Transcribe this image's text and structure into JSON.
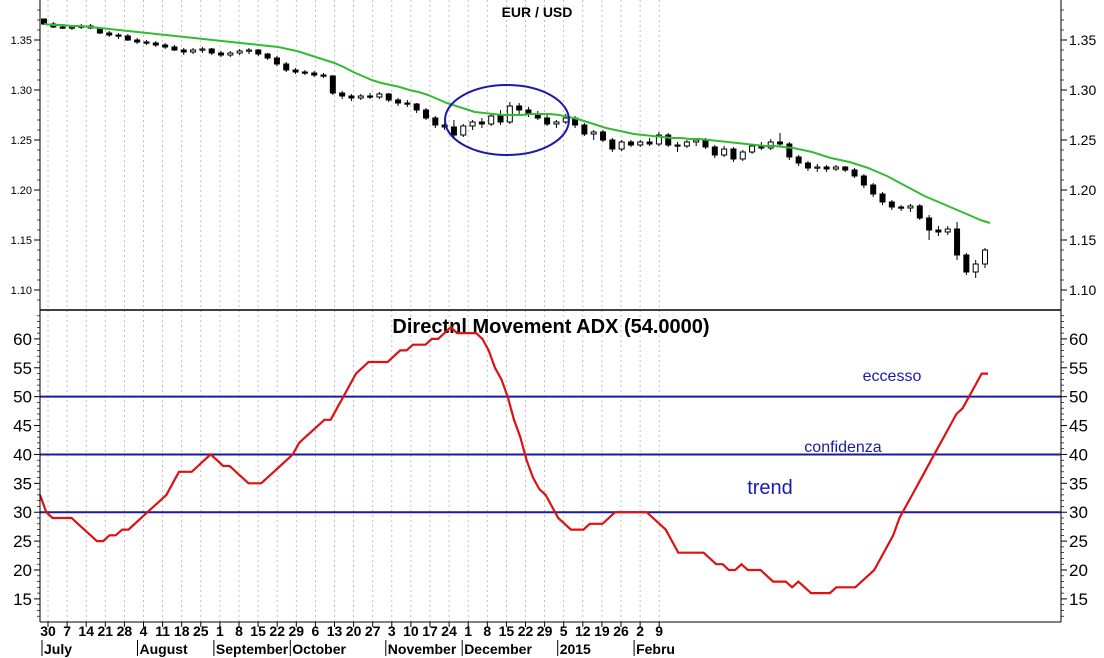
{
  "chart_data": [
    {
      "type": "candlestick",
      "title": "EUR / USD",
      "ylim": [
        1.08,
        1.39
      ],
      "y_ticks": [
        "1.10",
        "1.15",
        "1.20",
        "1.25",
        "1.30",
        "1.35"
      ],
      "colors": {
        "ma": "#33bb33",
        "candle": "#000000",
        "circle": "#1a1aaa"
      },
      "candles": [
        [
          1.371,
          1.371,
          1.365,
          1.366
        ],
        [
          1.366,
          1.368,
          1.362,
          1.363
        ],
        [
          1.363,
          1.365,
          1.361,
          1.362
        ],
        [
          1.362,
          1.364,
          1.36,
          1.363
        ],
        [
          1.363,
          1.366,
          1.361,
          1.364
        ],
        [
          1.364,
          1.366,
          1.361,
          1.362
        ],
        [
          1.362,
          1.363,
          1.356,
          1.357
        ],
        [
          1.357,
          1.359,
          1.353,
          1.355
        ],
        [
          1.355,
          1.357,
          1.351,
          1.354
        ],
        [
          1.354,
          1.356,
          1.349,
          1.35
        ],
        [
          1.35,
          1.352,
          1.346,
          1.348
        ],
        [
          1.348,
          1.35,
          1.345,
          1.347
        ],
        [
          1.347,
          1.349,
          1.343,
          1.345
        ],
        [
          1.345,
          1.347,
          1.341,
          1.343
        ],
        [
          1.343,
          1.345,
          1.339,
          1.34
        ],
        [
          1.34,
          1.342,
          1.335,
          1.338
        ],
        [
          1.338,
          1.342,
          1.336,
          1.34
        ],
        [
          1.34,
          1.343,
          1.337,
          1.341
        ],
        [
          1.341,
          1.342,
          1.335,
          1.337
        ],
        [
          1.337,
          1.339,
          1.333,
          1.335
        ],
        [
          1.335,
          1.339,
          1.333,
          1.337
        ],
        [
          1.337,
          1.341,
          1.335,
          1.339
        ],
        [
          1.339,
          1.342,
          1.336,
          1.34
        ],
        [
          1.34,
          1.341,
          1.334,
          1.336
        ],
        [
          1.336,
          1.337,
          1.33,
          1.332
        ],
        [
          1.332,
          1.334,
          1.324,
          1.326
        ],
        [
          1.326,
          1.328,
          1.318,
          1.32
        ],
        [
          1.32,
          1.322,
          1.316,
          1.318
        ],
        [
          1.318,
          1.32,
          1.315,
          1.317
        ],
        [
          1.317,
          1.319,
          1.313,
          1.315
        ],
        [
          1.315,
          1.317,
          1.312,
          1.314
        ],
        [
          1.314,
          1.315,
          1.295,
          1.297
        ],
        [
          1.297,
          1.299,
          1.291,
          1.294
        ],
        [
          1.294,
          1.296,
          1.289,
          1.292
        ],
        [
          1.292,
          1.296,
          1.29,
          1.294
        ],
        [
          1.294,
          1.297,
          1.291,
          1.293
        ],
        [
          1.293,
          1.298,
          1.291,
          1.296
        ],
        [
          1.296,
          1.297,
          1.288,
          1.29
        ],
        [
          1.29,
          1.292,
          1.284,
          1.287
        ],
        [
          1.287,
          1.29,
          1.283,
          1.286
        ],
        [
          1.286,
          1.287,
          1.277,
          1.28
        ],
        [
          1.28,
          1.282,
          1.27,
          1.272
        ],
        [
          1.272,
          1.274,
          1.262,
          1.265
        ],
        [
          1.265,
          1.268,
          1.26,
          1.263
        ],
        [
          1.263,
          1.27,
          1.252,
          1.255
        ],
        [
          1.255,
          1.266,
          1.253,
          1.264
        ],
        [
          1.264,
          1.27,
          1.26,
          1.268
        ],
        [
          1.268,
          1.272,
          1.262,
          1.266
        ],
        [
          1.266,
          1.276,
          1.264,
          1.274
        ],
        [
          1.274,
          1.28,
          1.265,
          1.268
        ],
        [
          1.268,
          1.288,
          1.266,
          1.284
        ],
        [
          1.284,
          1.287,
          1.276,
          1.28
        ],
        [
          1.28,
          1.283,
          1.273,
          1.276
        ],
        [
          1.276,
          1.279,
          1.27,
          1.272
        ],
        [
          1.272,
          1.275,
          1.264,
          1.266
        ],
        [
          1.266,
          1.27,
          1.262,
          1.268
        ],
        [
          1.268,
          1.276,
          1.266,
          1.272
        ],
        [
          1.272,
          1.274,
          1.262,
          1.265
        ],
        [
          1.265,
          1.267,
          1.254,
          1.256
        ],
        [
          1.256,
          1.26,
          1.25,
          1.258
        ],
        [
          1.258,
          1.26,
          1.248,
          1.25
        ],
        [
          1.25,
          1.252,
          1.238,
          1.241
        ],
        [
          1.241,
          1.25,
          1.239,
          1.248
        ],
        [
          1.248,
          1.25,
          1.243,
          1.245
        ],
        [
          1.245,
          1.25,
          1.243,
          1.248
        ],
        [
          1.248,
          1.252,
          1.244,
          1.246
        ],
        [
          1.246,
          1.258,
          1.244,
          1.255
        ],
        [
          1.255,
          1.257,
          1.243,
          1.245
        ],
        [
          1.245,
          1.248,
          1.238,
          1.244
        ],
        [
          1.244,
          1.25,
          1.242,
          1.248
        ],
        [
          1.248,
          1.252,
          1.244,
          1.25
        ],
        [
          1.25,
          1.252,
          1.241,
          1.243
        ],
        [
          1.243,
          1.245,
          1.232,
          1.235
        ],
        [
          1.235,
          1.244,
          1.233,
          1.241
        ],
        [
          1.241,
          1.243,
          1.228,
          1.231
        ],
        [
          1.231,
          1.24,
          1.229,
          1.238
        ],
        [
          1.238,
          1.246,
          1.236,
          1.244
        ],
        [
          1.244,
          1.248,
          1.24,
          1.242
        ],
        [
          1.242,
          1.251,
          1.24,
          1.248
        ],
        [
          1.248,
          1.257,
          1.244,
          1.246
        ],
        [
          1.246,
          1.248,
          1.23,
          1.233
        ],
        [
          1.233,
          1.235,
          1.224,
          1.227
        ],
        [
          1.227,
          1.229,
          1.219,
          1.222
        ],
        [
          1.222,
          1.226,
          1.218,
          1.223
        ],
        [
          1.223,
          1.225,
          1.218,
          1.221
        ],
        [
          1.221,
          1.225,
          1.219,
          1.223
        ],
        [
          1.223,
          1.224,
          1.218,
          1.22
        ],
        [
          1.22,
          1.222,
          1.212,
          1.214
        ],
        [
          1.214,
          1.216,
          1.202,
          1.205
        ],
        [
          1.205,
          1.207,
          1.193,
          1.196
        ],
        [
          1.196,
          1.198,
          1.185,
          1.188
        ],
        [
          1.188,
          1.19,
          1.18,
          1.183
        ],
        [
          1.183,
          1.185,
          1.179,
          1.182
        ],
        [
          1.182,
          1.186,
          1.178,
          1.184
        ],
        [
          1.184,
          1.186,
          1.17,
          1.172
        ],
        [
          1.172,
          1.175,
          1.15,
          1.16
        ],
        [
          1.16,
          1.164,
          1.154,
          1.158
        ],
        [
          1.158,
          1.164,
          1.155,
          1.161
        ],
        [
          1.161,
          1.168,
          1.13,
          1.135
        ],
        [
          1.135,
          1.137,
          1.115,
          1.118
        ],
        [
          1.118,
          1.13,
          1.112,
          1.126
        ],
        [
          1.126,
          1.142,
          1.122,
          1.14
        ]
      ],
      "ma": [
        1.366,
        1.365,
        1.365,
        1.364,
        1.364,
        1.363,
        1.362,
        1.361,
        1.36,
        1.359,
        1.358,
        1.357,
        1.356,
        1.355,
        1.354,
        1.353,
        1.352,
        1.351,
        1.35,
        1.349,
        1.348,
        1.347,
        1.346,
        1.345,
        1.344,
        1.343,
        1.341,
        1.339,
        1.336,
        1.333,
        1.33,
        1.327,
        1.323,
        1.318,
        1.314,
        1.31,
        1.307,
        1.305,
        1.303,
        1.3,
        1.298,
        1.295,
        1.291,
        1.287,
        1.284,
        1.281,
        1.278,
        1.277,
        1.276,
        1.275,
        1.275,
        1.275,
        1.276,
        1.276,
        1.276,
        1.275,
        1.273,
        1.271,
        1.268,
        1.265,
        1.262,
        1.26,
        1.258,
        1.256,
        1.255,
        1.254,
        1.253,
        1.252,
        1.252,
        1.251,
        1.251,
        1.25,
        1.249,
        1.248,
        1.247,
        1.246,
        1.245,
        1.244,
        1.244,
        1.243,
        1.242,
        1.24,
        1.238,
        1.235,
        1.232,
        1.23,
        1.228,
        1.225,
        1.222,
        1.218,
        1.214,
        1.209,
        1.204,
        1.199,
        1.194,
        1.19,
        1.186,
        1.182,
        1.178,
        1.174,
        1.17,
        1.167
      ]
    },
    {
      "type": "line",
      "title": "Directnl Movement ADX (54.0000)",
      "ylim": [
        11,
        65
      ],
      "y_ticks": [
        "15",
        "20",
        "25",
        "30",
        "35",
        "40",
        "45",
        "50",
        "55",
        "60"
      ],
      "colors": {
        "adx": "#dd1111",
        "levels": "#1a1aaa"
      },
      "series": [
        {
          "values": [
            33,
            30,
            29,
            29,
            29,
            29,
            28,
            27,
            26,
            25,
            25,
            26,
            26,
            27,
            27,
            28,
            29,
            30,
            31,
            32,
            33,
            35,
            37,
            37,
            37,
            38,
            39,
            40,
            39,
            38,
            38,
            37,
            36,
            35,
            35,
            35,
            36,
            37,
            38,
            39,
            40,
            42,
            43,
            44,
            45,
            46,
            46,
            48,
            50,
            52,
            54,
            55,
            56,
            56,
            56,
            56,
            57,
            58,
            58,
            59,
            59,
            59,
            60,
            60,
            61,
            62,
            61,
            61,
            61,
            61,
            60,
            58,
            55,
            53,
            50,
            46,
            43,
            39,
            36,
            34,
            33,
            31,
            29,
            28,
            27,
            27,
            27,
            28,
            28,
            28,
            29,
            30,
            30,
            30,
            30,
            30,
            30,
            29,
            28,
            27,
            25,
            23,
            23,
            23,
            23,
            23,
            22,
            21,
            21,
            20,
            20,
            21,
            20,
            20,
            20,
            19,
            18,
            18,
            18,
            17,
            18,
            17,
            16,
            16,
            16,
            16,
            17,
            17,
            17,
            17,
            18,
            19,
            20,
            22,
            24,
            26,
            29,
            31,
            33,
            35,
            37,
            39,
            41,
            43,
            45,
            47,
            48,
            50,
            52,
            54,
            54
          ]
        }
      ],
      "levels": [
        {
          "value": 30,
          "label": "trend"
        },
        {
          "value": 40,
          "label": "confidenza"
        },
        {
          "value": 50,
          "label": "eccesso"
        }
      ]
    }
  ],
  "x_axis": {
    "day_labels": [
      "30",
      "7",
      "14",
      "21",
      "28",
      "4",
      "11",
      "18",
      "25",
      "1",
      "8",
      "15",
      "22",
      "29",
      "6",
      "13",
      "20",
      "27",
      "3",
      "10",
      "17",
      "24",
      "1",
      "8",
      "15",
      "22",
      "29",
      "5",
      "12",
      "19",
      "26",
      "2",
      "9"
    ],
    "month_labels": [
      "July",
      "August",
      "September",
      "October",
      "November",
      "December",
      "2015",
      "Febru"
    ]
  }
}
